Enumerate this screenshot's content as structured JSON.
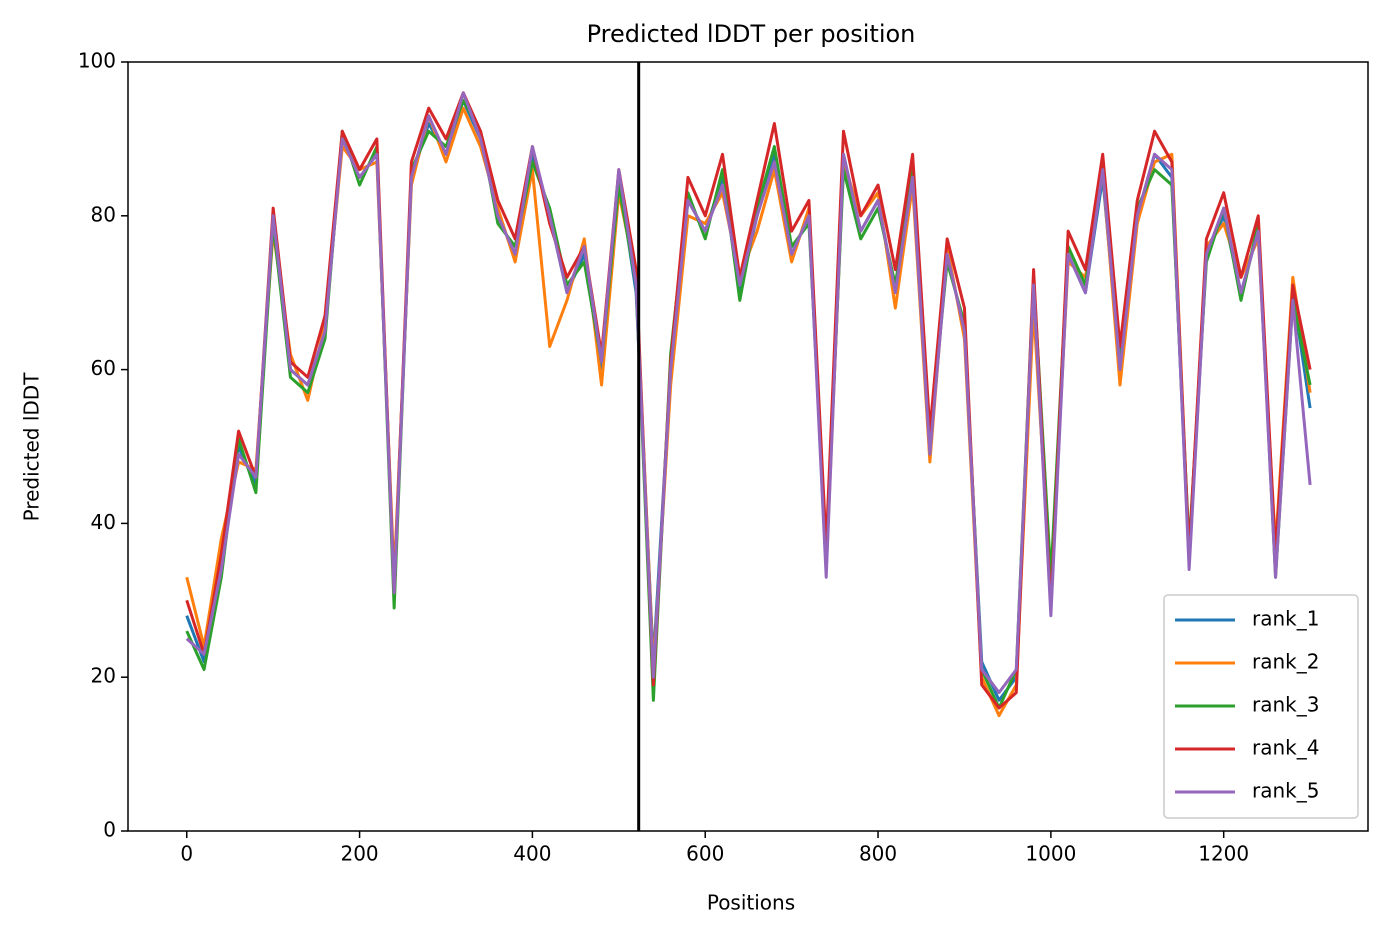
{
  "chart_data": {
    "type": "line",
    "title": "Predicted lDDT per position",
    "xlabel": "Positions",
    "ylabel": "Predicted lDDT",
    "x": [
      0,
      20,
      40,
      60,
      80,
      100,
      120,
      140,
      160,
      180,
      200,
      220,
      240,
      260,
      280,
      300,
      320,
      340,
      360,
      380,
      400,
      420,
      440,
      460,
      480,
      500,
      520,
      540,
      560,
      580,
      600,
      620,
      640,
      660,
      680,
      700,
      720,
      740,
      760,
      780,
      800,
      820,
      840,
      860,
      880,
      900,
      920,
      940,
      960,
      980,
      1000,
      1020,
      1040,
      1060,
      1080,
      1100,
      1120,
      1140,
      1160,
      1180,
      1200,
      1220,
      1240,
      1260,
      1280,
      1300
    ],
    "series": [
      {
        "name": "rank_1",
        "color": "#1f77b4",
        "values": [
          28,
          22,
          35,
          50,
          45,
          80,
          60,
          58,
          65,
          90,
          85,
          88,
          32,
          85,
          92,
          88,
          95,
          90,
          80,
          75,
          88,
          80,
          70,
          75,
          60,
          85,
          70,
          22,
          60,
          82,
          78,
          85,
          70,
          80,
          88,
          75,
          80,
          35,
          88,
          78,
          82,
          70,
          85,
          50,
          75,
          65,
          22,
          17,
          20,
          70,
          30,
          75,
          70,
          85,
          60,
          80,
          88,
          85,
          35,
          75,
          80,
          70,
          78,
          35,
          70,
          55
        ]
      },
      {
        "name": "rank_2",
        "color": "#ff7f0e",
        "values": [
          33,
          24,
          38,
          48,
          47,
          78,
          62,
          56,
          66,
          89,
          86,
          87,
          33,
          84,
          93,
          87,
          94,
          89,
          81,
          74,
          86,
          63,
          69,
          77,
          58,
          83,
          72,
          21,
          58,
          80,
          79,
          83,
          72,
          78,
          86,
          74,
          81,
          34,
          87,
          80,
          83,
          68,
          84,
          48,
          76,
          64,
          20,
          15,
          19,
          68,
          31,
          74,
          72,
          86,
          58,
          79,
          87,
          88,
          36,
          76,
          79,
          72,
          77,
          37,
          72,
          57
        ]
      },
      {
        "name": "rank_3",
        "color": "#2ca02c",
        "values": [
          26,
          21,
          33,
          51,
          44,
          79,
          59,
          57,
          64,
          91,
          84,
          89,
          29,
          86,
          91,
          89,
          95,
          91,
          79,
          76,
          87,
          81,
          71,
          74,
          61,
          84,
          71,
          17,
          62,
          83,
          77,
          86,
          69,
          81,
          89,
          76,
          79,
          36,
          86,
          77,
          81,
          71,
          86,
          51,
          74,
          66,
          21,
          16,
          21,
          72,
          33,
          76,
          71,
          87,
          62,
          81,
          86,
          84,
          37,
          74,
          81,
          69,
          79,
          33,
          69,
          58
        ]
      },
      {
        "name": "rank_4",
        "color": "#d62728",
        "values": [
          30,
          23,
          36,
          52,
          46,
          81,
          61,
          59,
          67,
          91,
          86,
          90,
          31,
          87,
          94,
          90,
          96,
          91,
          82,
          77,
          89,
          79,
          72,
          76,
          62,
          86,
          73,
          19,
          61,
          85,
          80,
          88,
          72,
          82,
          92,
          78,
          82,
          37,
          91,
          80,
          84,
          73,
          88,
          52,
          77,
          68,
          19,
          16,
          18,
          73,
          29,
          78,
          73,
          88,
          63,
          82,
          91,
          87,
          36,
          77,
          83,
          72,
          80,
          36,
          71,
          60
        ]
      },
      {
        "name": "rank_5",
        "color": "#9467bd",
        "values": [
          25,
          23,
          34,
          49,
          46,
          80,
          60,
          58,
          65,
          90,
          85,
          88,
          31,
          85,
          93,
          88,
          96,
          90,
          80,
          75,
          89,
          80,
          70,
          76,
          61,
          86,
          71,
          20,
          60,
          82,
          78,
          84,
          71,
          80,
          87,
          75,
          80,
          33,
          88,
          78,
          82,
          70,
          85,
          49,
          75,
          65,
          21,
          18,
          21,
          71,
          28,
          75,
          70,
          86,
          60,
          80,
          88,
          86,
          34,
          75,
          81,
          70,
          78,
          33,
          69,
          45
        ]
      }
    ],
    "vlines": [
      523
    ],
    "vline_color": "#000000",
    "xlim": [
      -68,
      1367
    ],
    "ylim": [
      0,
      100
    ],
    "xticks": [
      0,
      200,
      400,
      600,
      800,
      1000,
      1200
    ],
    "yticks": [
      0,
      20,
      40,
      60,
      80,
      100
    ],
    "grid": false,
    "legend": "lower right"
  }
}
